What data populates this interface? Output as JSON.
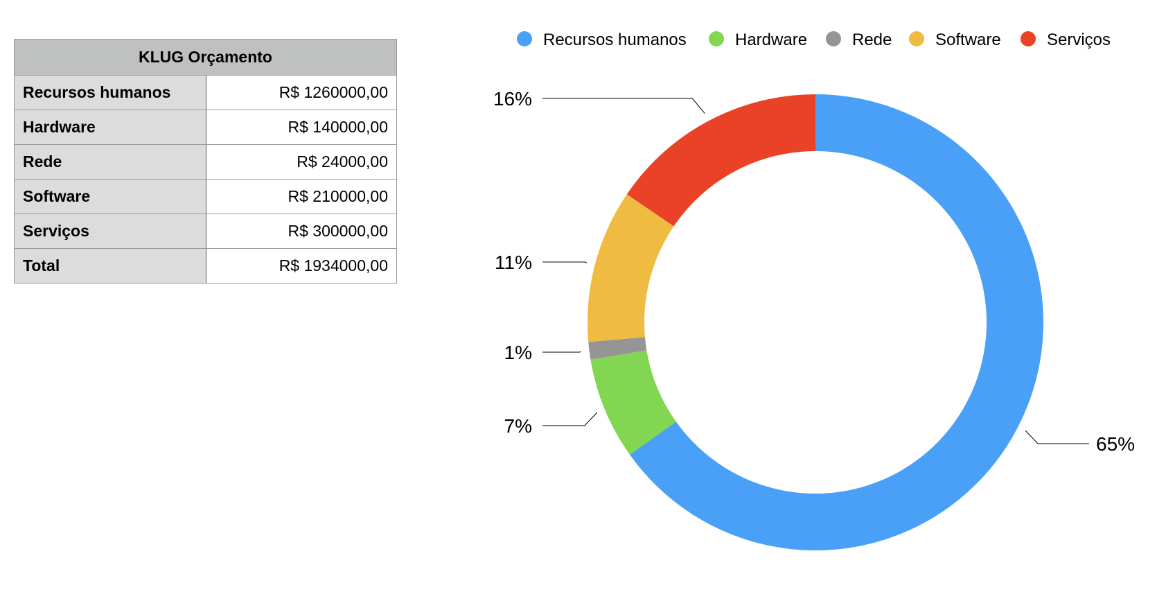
{
  "table": {
    "title": "KLUG Orçamento",
    "rows": [
      {
        "label": "Recursos humanos",
        "value": "R$ 1260000,00"
      },
      {
        "label": "Hardware",
        "value": "R$ 140000,00"
      },
      {
        "label": "Rede",
        "value": "R$ 24000,00"
      },
      {
        "label": "Software",
        "value": "R$ 210000,00"
      },
      {
        "label": "Serviços",
        "value": "R$ 300000,00"
      },
      {
        "label": "Total",
        "value": "R$ 1934000,00"
      }
    ]
  },
  "chart_data": {
    "type": "pie",
    "donut": true,
    "title": "",
    "legend_position": "top",
    "categories": [
      "Recursos humanos",
      "Hardware",
      "Rede",
      "Software",
      "Serviços"
    ],
    "values": [
      1260000,
      140000,
      24000,
      210000,
      300000
    ],
    "percent_labels": [
      "65%",
      "7%",
      "1%",
      "11%",
      "16%"
    ],
    "colors": [
      "#4aa0f7",
      "#82d651",
      "#959595",
      "#efbb40",
      "#e94227"
    ]
  }
}
